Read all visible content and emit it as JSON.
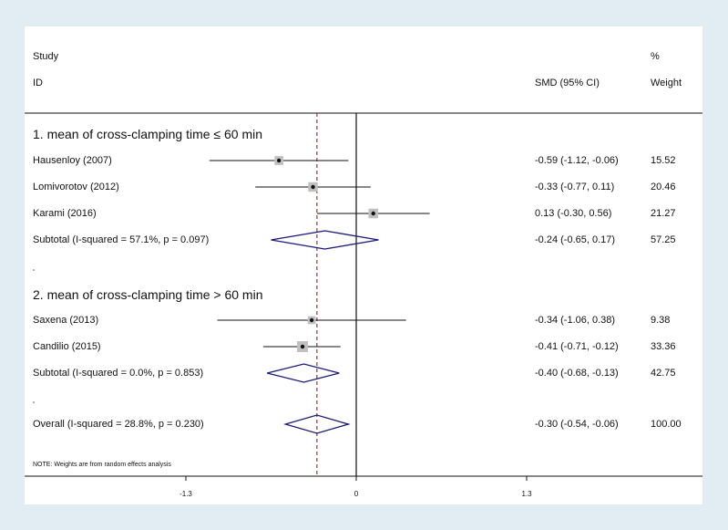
{
  "chart_data": {
    "type": "forest",
    "headers": {
      "study_top": "Study",
      "study_bottom": "ID",
      "estimate": "SMD (95% CI)",
      "weight_top": "%",
      "weight_bottom": "Weight"
    },
    "xaxis": {
      "ticks": [
        -1.3,
        0,
        1.3
      ],
      "tick_labels": [
        "-1.3",
        "0",
        "1.3"
      ],
      "range": [
        -1.3,
        1.3
      ],
      "reference_line": 0,
      "overall_line": -0.3
    },
    "groups": [
      {
        "label": "1. mean of cross-clamping time ≤ 60 min",
        "studies": [
          {
            "name": "Hausenloy (2007)",
            "smd": -0.59,
            "lo": -1.12,
            "hi": -0.06,
            "ci_text": "-0.59 (-1.12, -0.06)",
            "weight": "15.52"
          },
          {
            "name": "Lomivorotov (2012)",
            "smd": -0.33,
            "lo": -0.77,
            "hi": 0.11,
            "ci_text": "-0.33 (-0.77, 0.11)",
            "weight": "20.46"
          },
          {
            "name": "Karami (2016)",
            "smd": 0.13,
            "lo": -0.3,
            "hi": 0.56,
            "ci_text": "0.13 (-0.30, 0.56)",
            "weight": "21.27"
          }
        ],
        "subtotal": {
          "label": "Subtotal  (I-squared = 57.1%, p = 0.097)",
          "smd": -0.24,
          "lo": -0.65,
          "hi": 0.17,
          "ci_text": "-0.24 (-0.65, 0.17)",
          "weight": "57.25"
        }
      },
      {
        "label": "2. mean of cross-clamping time > 60 min",
        "studies": [
          {
            "name": "Saxena (2013)",
            "smd": -0.34,
            "lo": -1.06,
            "hi": 0.38,
            "ci_text": "-0.34 (-1.06, 0.38)",
            "weight": "9.38"
          },
          {
            "name": "Candilio (2015)",
            "smd": -0.41,
            "lo": -0.71,
            "hi": -0.12,
            "ci_text": "-0.41 (-0.71, -0.12)",
            "weight": "33.36"
          }
        ],
        "subtotal": {
          "label": "Subtotal  (I-squared = 0.0%, p = 0.853)",
          "smd": -0.4,
          "lo": -0.68,
          "hi": -0.13,
          "ci_text": "-0.40 (-0.68, -0.13)",
          "weight": "42.75"
        }
      }
    ],
    "overall": {
      "label": "Overall  (I-squared = 28.8%, p = 0.230)",
      "smd": -0.3,
      "lo": -0.54,
      "hi": -0.06,
      "ci_text": "-0.30 (-0.54, -0.06)",
      "weight": "100.00"
    },
    "note": "NOTE: Weights are from random effects analysis",
    "colors": {
      "background": "#e2edf3",
      "panel": "#ffffff",
      "diamond": "#1b1b7a",
      "overall_line": "#a0303a",
      "box": "#c0c0c0",
      "ink": "#111111"
    }
  }
}
